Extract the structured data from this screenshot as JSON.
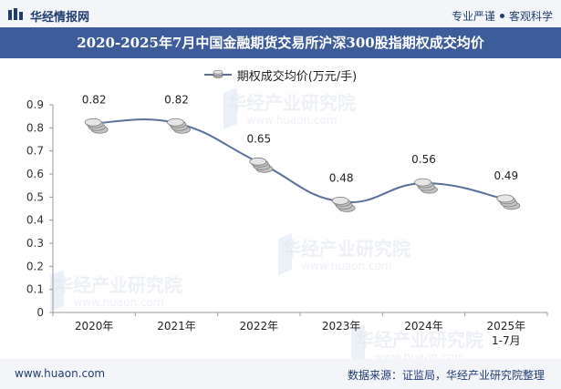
{
  "header": {
    "brand": "华经情报网",
    "slogan_left": "专业严谨",
    "slogan_right": "客观科学"
  },
  "watermark": {
    "text": "华经产业研究院",
    "url": "www.huaon.com"
  },
  "footer": {
    "website": "www.huaon.com",
    "source": "数据来源：证监局，华经产业研究院整理"
  },
  "colors": {
    "title_bg": "#3d5c9a",
    "line": "#5a6f9a",
    "topbar_bg": "#f3f5f8",
    "brand_text": "#1f3c73"
  },
  "chart_data": {
    "type": "line",
    "title": "2020-2025年7月中国金融期货交易所沪深300股指期权成交均价",
    "categories": [
      "2020年",
      "2021年",
      "2022年",
      "2023年",
      "2024年",
      "2025年\n1-7月"
    ],
    "series": [
      {
        "name": "期权成交均价(万元/手)",
        "values": [
          0.82,
          0.82,
          0.65,
          0.48,
          0.56,
          0.49
        ]
      }
    ],
    "data_labels": [
      "0.82",
      "0.82",
      "0.65",
      "0.48",
      "0.56",
      "0.49"
    ],
    "ylim": [
      0,
      0.9
    ],
    "yticks": [
      "0",
      "0.1",
      "0.2",
      "0.3",
      "0.4",
      "0.5",
      "0.6",
      "0.7",
      "0.8",
      "0.9"
    ],
    "smooth": true,
    "marker": "coin-stack",
    "legend_position": "top-center",
    "grid": false
  }
}
